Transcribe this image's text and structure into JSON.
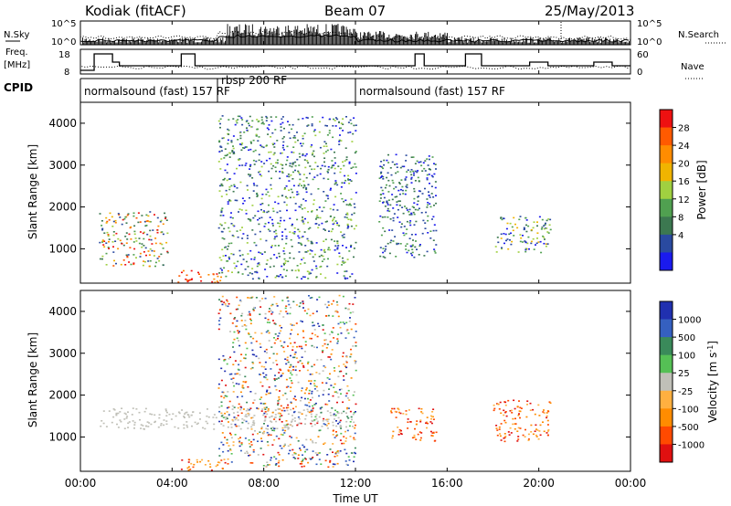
{
  "header": {
    "station": "Kodiak (fitACF)",
    "beam": "Beam 07",
    "date": "25/May/2013"
  },
  "summary_panels": {
    "nsky_label": "N.Sky",
    "nsearch_label": "N.Search",
    "nsky_ticks": [
      "10^5",
      "10^0"
    ],
    "nsearch_ticks": [
      "10^5",
      "10^0"
    ],
    "freq_label_line1": "Freq.",
    "freq_label_line2": "[MHz]",
    "freq_ticks": [
      "18",
      "8"
    ],
    "nave_label": "Nave",
    "nave_ticks": [
      "60",
      "0"
    ],
    "cpid_label": "CPID",
    "cpid_segments": [
      {
        "name": "normalsound (fast) 157 RF",
        "start": 0,
        "end": 6
      },
      {
        "name": "rbsp 200 RF",
        "start": 6,
        "end": 12
      },
      {
        "name": "normalsound (fast) 157 RF",
        "start": 12,
        "end": 24
      }
    ]
  },
  "axes": {
    "xlabel": "Time UT",
    "x_ticks": [
      "00:00",
      "04:00",
      "08:00",
      "12:00",
      "16:00",
      "20:00",
      "00:00"
    ],
    "ylabel": "Slant Range [km]",
    "y_ticks": [
      "1000",
      "2000",
      "3000",
      "4000"
    ]
  },
  "power_scale": {
    "label": "Power [dB]",
    "ticks": [
      "28",
      "24",
      "20",
      "16",
      "12",
      "8",
      "4"
    ],
    "colors": [
      "#ee1111",
      "#ff5a00",
      "#ff8c00",
      "#f0b400",
      "#a0d040",
      "#50a050",
      "#3c7850",
      "#2a4aa0",
      "#1a1aee"
    ]
  },
  "velocity_scale": {
    "label": "Velocity [m s",
    "label_sup": "-1",
    "label_end": "]",
    "ticks": [
      "1000",
      "500",
      "100",
      "25",
      "-25",
      "-100",
      "-500",
      "-1000"
    ],
    "colors": [
      "#2030b0",
      "#3560c0",
      "#3a8a5a",
      "#55c055",
      "#c0c0b8",
      "#ffb040",
      "#ff8c00",
      "#ff4a00",
      "#e01010"
    ]
  },
  "chart_data": [
    {
      "type": "heatmap",
      "title": "Power",
      "x_range_hours": [
        0,
        24
      ],
      "y_range_km": [
        180,
        4500
      ],
      "regions": [
        {
          "t0": 0.8,
          "t1": 3.8,
          "r0": 600,
          "r1": 1900,
          "level": "medium-high"
        },
        {
          "t0": 4.2,
          "t1": 6.5,
          "r0": 200,
          "r1": 500,
          "level": "high"
        },
        {
          "t0": 6.0,
          "t1": 12.0,
          "r0": 300,
          "r1": 4200,
          "level": "scattered"
        },
        {
          "t0": 13.0,
          "t1": 15.5,
          "r0": 800,
          "r1": 3300,
          "level": "low"
        },
        {
          "t0": 18.0,
          "t1": 20.5,
          "r0": 900,
          "r1": 1800,
          "level": "medium"
        }
      ],
      "colorbar": {
        "label": "Power [dB]",
        "range": [
          4,
          28
        ]
      }
    },
    {
      "type": "heatmap",
      "title": "Velocity",
      "x_range_hours": [
        0,
        24
      ],
      "y_range_km": [
        180,
        4500
      ],
      "regions": [
        {
          "t0": 0.8,
          "t1": 12.0,
          "r0": 1200,
          "r1": 1700,
          "level": "near-zero"
        },
        {
          "t0": 4.2,
          "t1": 6.5,
          "r0": 200,
          "r1": 500,
          "level": "negative"
        },
        {
          "t0": 6.0,
          "t1": 12.0,
          "r0": 300,
          "r1": 4400,
          "level": "scattered"
        },
        {
          "t0": 13.5,
          "t1": 15.5,
          "r0": 900,
          "r1": 1700,
          "level": "negative"
        },
        {
          "t0": 18.0,
          "t1": 20.5,
          "r0": 900,
          "r1": 1900,
          "level": "negative"
        }
      ],
      "colorbar": {
        "label": "Velocity [m s-1]",
        "range": [
          -1000,
          1000
        ]
      }
    }
  ]
}
